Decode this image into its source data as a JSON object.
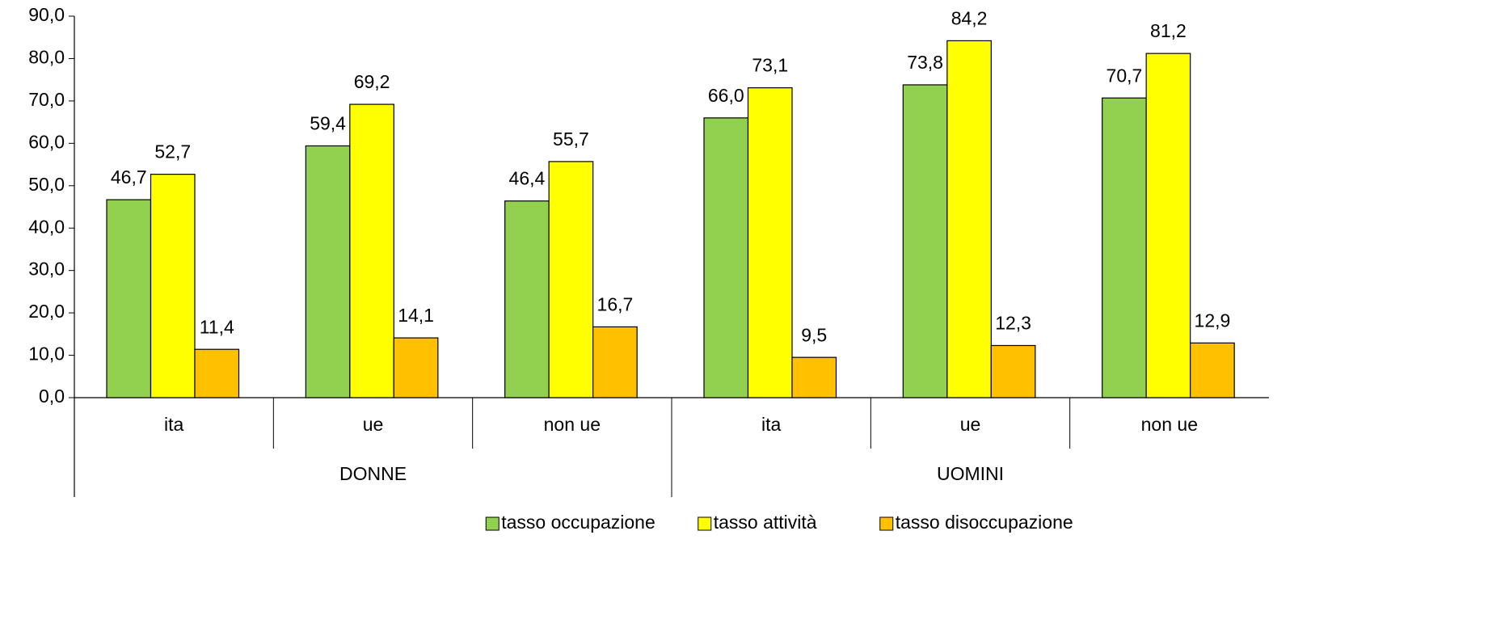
{
  "chart_data": {
    "type": "bar",
    "groups": [
      {
        "name": "DONNE",
        "categories": [
          "ita",
          "ue",
          "non ue"
        ]
      },
      {
        "name": "UOMINI",
        "categories": [
          "ita",
          "ue",
          "non ue"
        ]
      }
    ],
    "series": [
      {
        "name": "tasso occupazione",
        "color": "#92d050",
        "values": [
          46.7,
          59.4,
          46.4,
          66.0,
          73.8,
          70.7
        ],
        "value_labels": [
          "46,7",
          "59,4",
          "46,4",
          "66,0",
          "73,8",
          "70,7"
        ]
      },
      {
        "name": "tasso attività",
        "color": "#ffff00",
        "values": [
          52.7,
          69.2,
          55.7,
          73.1,
          84.2,
          81.2
        ],
        "value_labels": [
          "52,7",
          "69,2",
          "55,7",
          "73,1",
          "84,2",
          "81,2"
        ]
      },
      {
        "name": "tasso disoccupazione",
        "color": "#ffc000",
        "values": [
          11.4,
          14.1,
          16.7,
          9.5,
          12.3,
          12.9
        ],
        "value_labels": [
          "11,4",
          "14,1",
          "16,7",
          "9,5",
          "12,3",
          "12,9"
        ]
      }
    ],
    "ylim": [
      0,
      90
    ],
    "yticks": [
      {
        "value": 0,
        "label": "0,0"
      },
      {
        "value": 10,
        "label": "10,0"
      },
      {
        "value": 20,
        "label": "20,0"
      },
      {
        "value": 30,
        "label": "30,0"
      },
      {
        "value": 40,
        "label": "40,0"
      },
      {
        "value": 50,
        "label": "50,0"
      },
      {
        "value": 60,
        "label": "60,0"
      },
      {
        "value": 70,
        "label": "70,0"
      },
      {
        "value": 80,
        "label": "80,0"
      },
      {
        "value": 90,
        "label": "90,0"
      }
    ],
    "legend": "bottom"
  }
}
